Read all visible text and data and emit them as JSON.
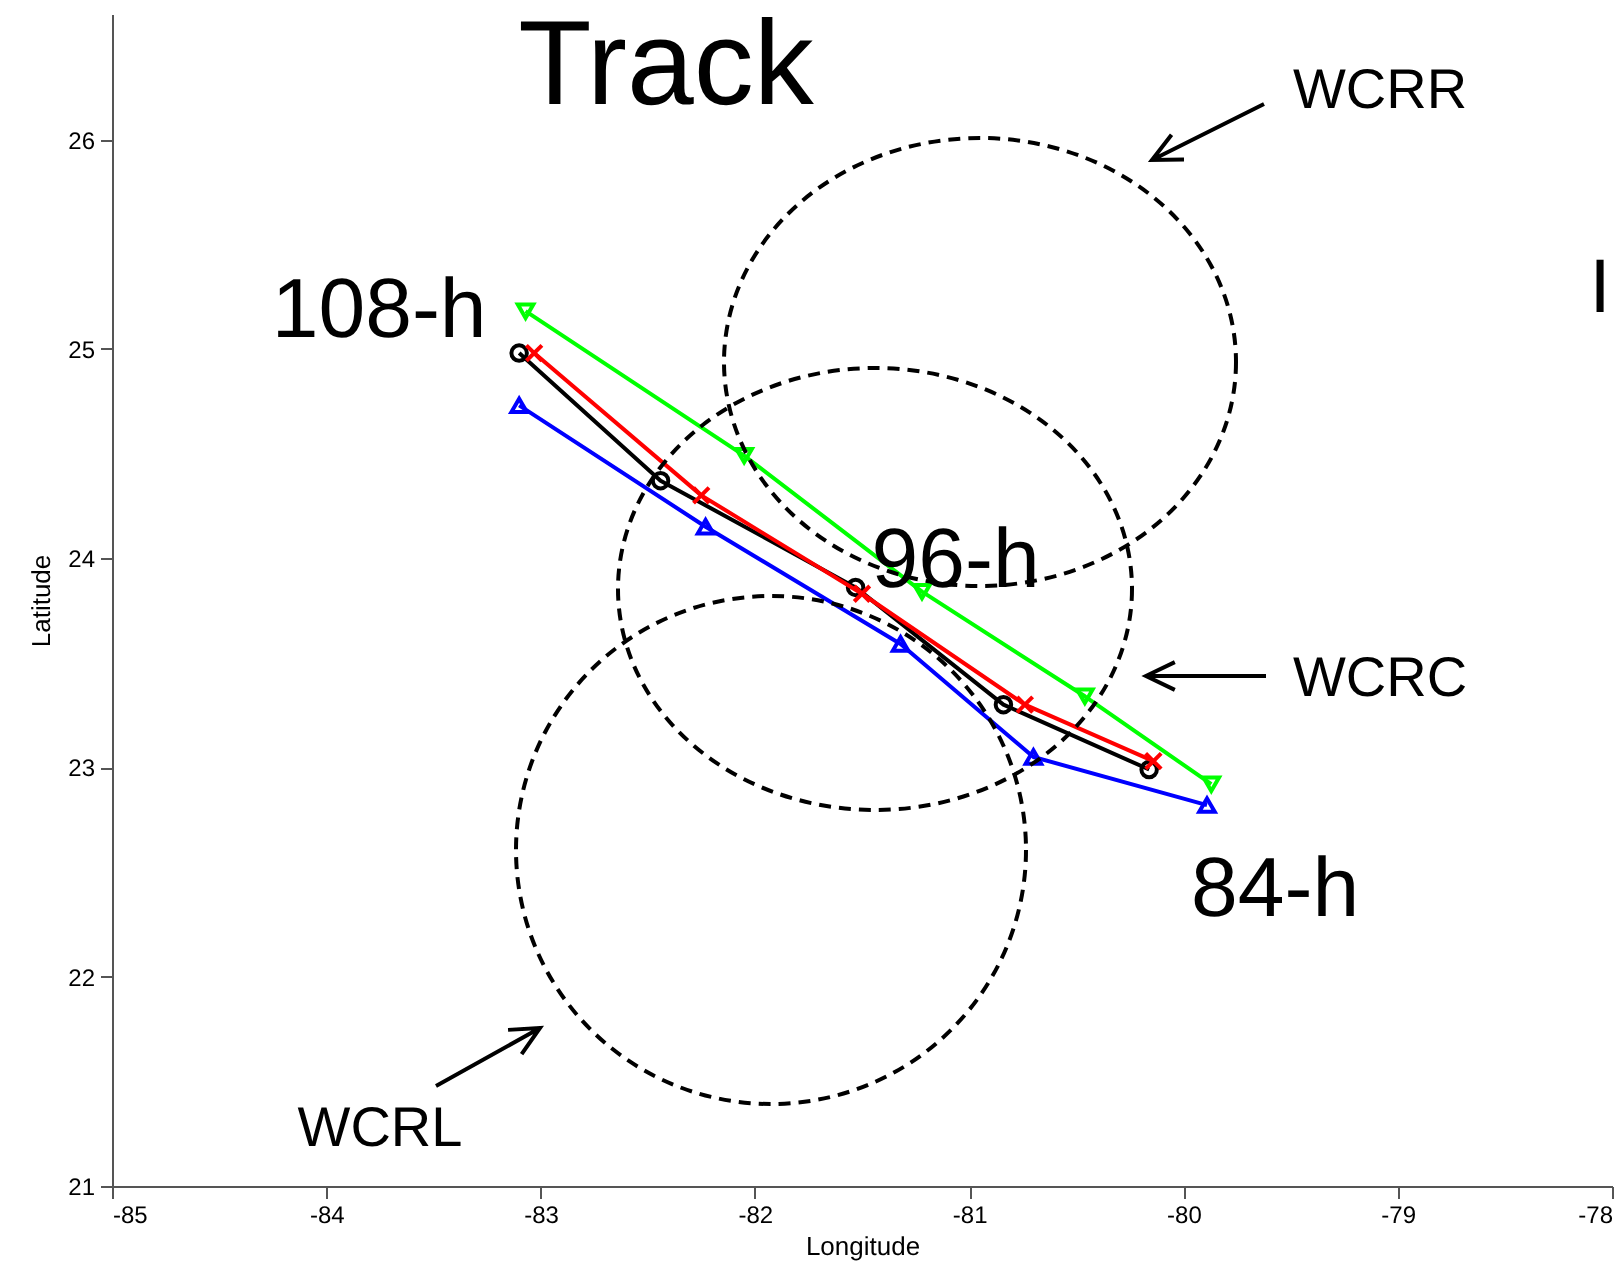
{
  "chart_data": {
    "type": "line",
    "title": "Track",
    "xlabel": "Longitude",
    "ylabel": "Latitude",
    "xlim": [
      -85,
      -78
    ],
    "ylim": [
      21,
      26.6
    ],
    "xticks": [
      -85,
      -84,
      -83,
      -82,
      -81,
      -80,
      -79,
      -78
    ],
    "yticks": [
      21,
      22,
      23,
      24,
      25,
      26
    ],
    "grid": false,
    "annotations": [
      {
        "text": "108-h",
        "x": -83.1,
        "y": 24.98
      },
      {
        "text": "96-h",
        "x": -81.53,
        "y": 23.86
      },
      {
        "text": "84-h",
        "x": -80.16,
        "y": 22.99
      },
      "WCRR",
      "WCRC",
      "WCRL",
      "I"
    ],
    "series": [
      {
        "color": "#00ff00",
        "line_style": "solid",
        "marker": "triangle-down",
        "x": [
          -83.07,
          -82.05,
          -81.22,
          -80.46,
          -79.87
        ],
        "values": [
          25.18,
          24.49,
          23.84,
          23.34,
          22.92
        ]
      },
      {
        "color": "#0000ff",
        "line_style": "solid",
        "marker": "triangle",
        "x": [
          -83.1,
          -82.23,
          -81.32,
          -80.7,
          -79.89
        ],
        "values": [
          24.73,
          24.15,
          23.59,
          23.05,
          22.82
        ]
      },
      {
        "color": "#000000",
        "line_style": "solid",
        "marker": "circle",
        "x": [
          -83.1,
          -82.44,
          -81.53,
          -80.84,
          -80.16
        ],
        "values": [
          24.98,
          24.37,
          23.86,
          23.3,
          22.99
        ]
      },
      {
        "color": "#ff0000",
        "line_style": "solid",
        "marker": "cross",
        "x": [
          -83.03,
          -82.25,
          -81.5,
          -80.74,
          -80.14
        ],
        "values": [
          24.98,
          24.3,
          23.83,
          23.3,
          23.03
        ]
      }
    ]
  }
}
